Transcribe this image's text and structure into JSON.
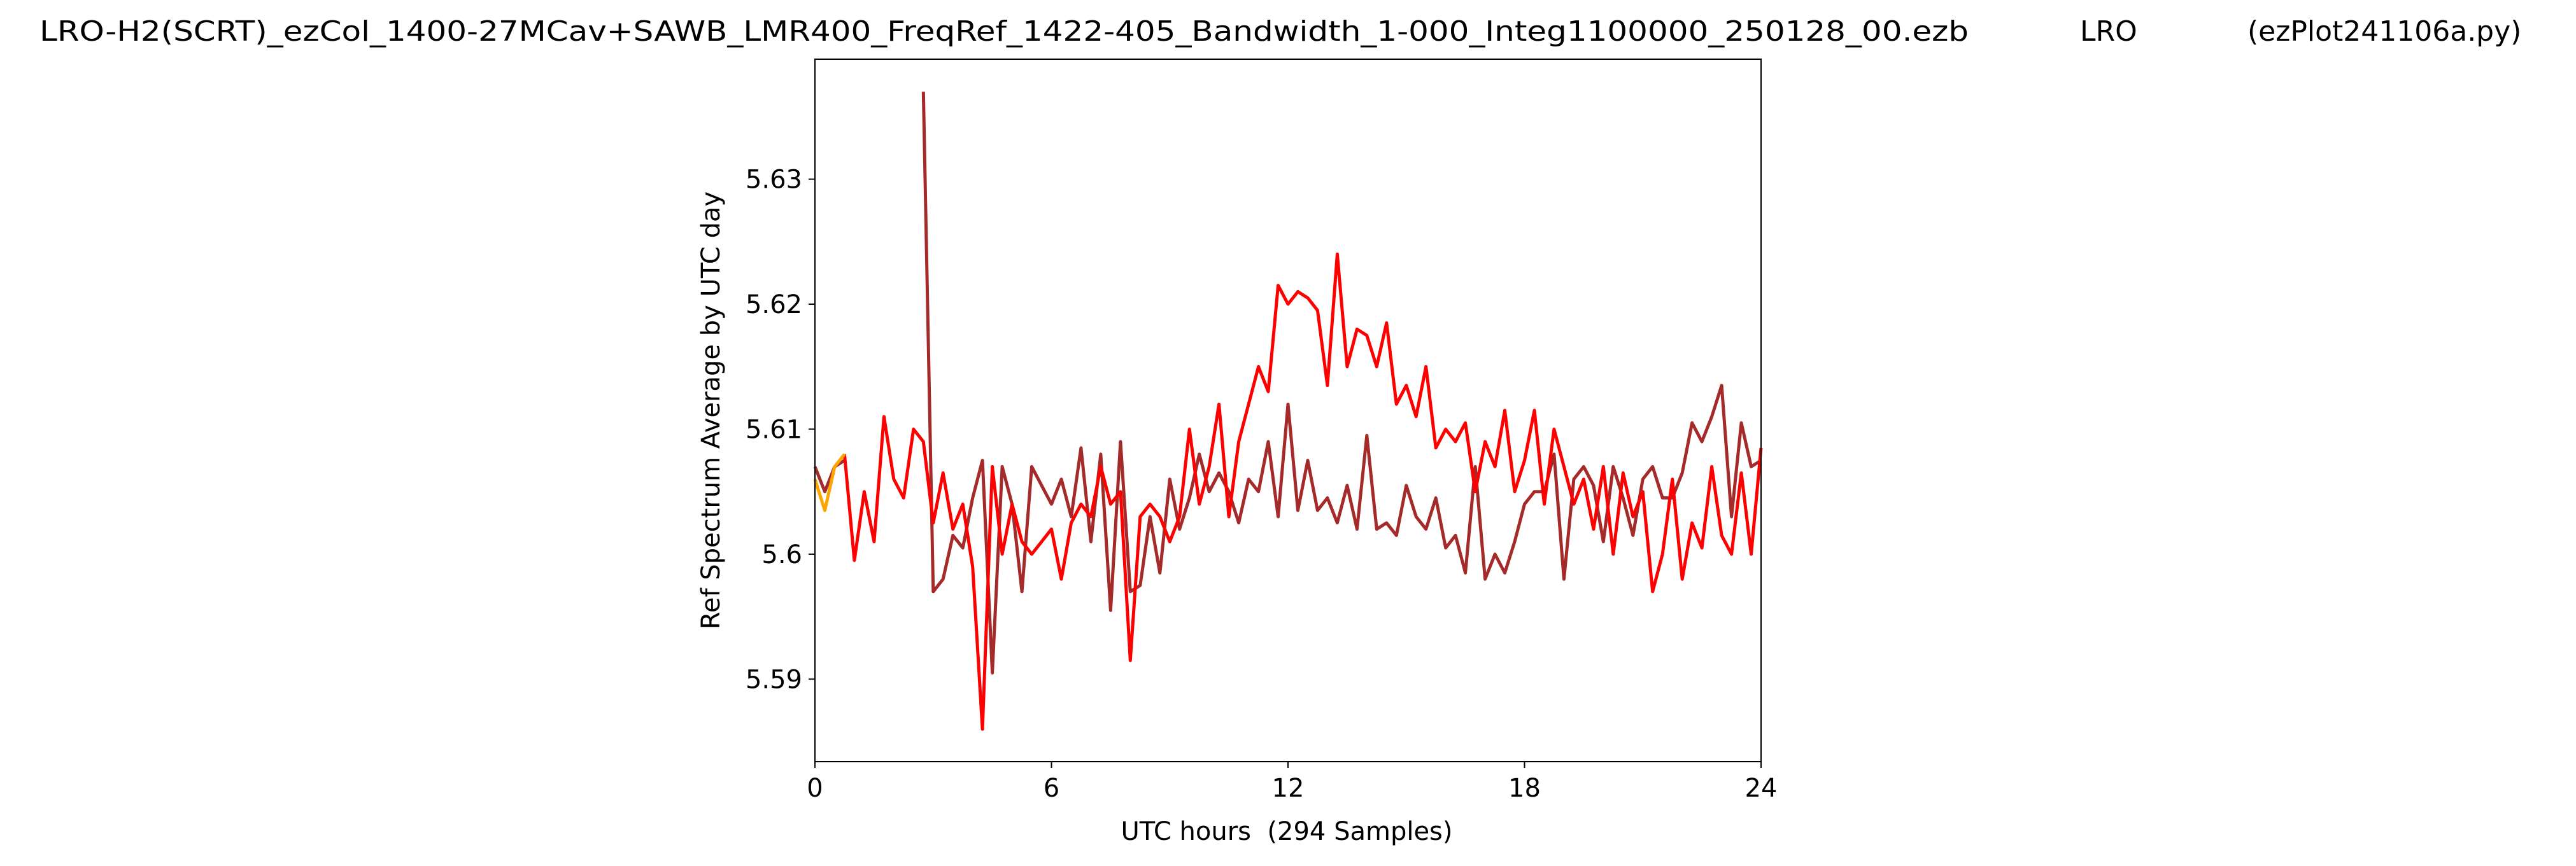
{
  "chart_data": {
    "type": "line",
    "title": "LRO-H2(SCRT)_ezCol_1400-27MCav+SAWB_LMR400_FreqRef_1422-405_Bandwidth_1-000_Integ1100000_250128_00.ezb",
    "annotations": [
      "LRO",
      "(ezPlot241106a.py)"
    ],
    "xlabel": "UTC hours  (294 Samples)",
    "ylabel": "Ref Spectrum Average by UTC day",
    "xlim": [
      0,
      24
    ],
    "xticks": [
      0,
      6,
      12,
      18,
      24
    ],
    "ylim": [
      5.5834,
      5.6396
    ],
    "yticks": [
      5.59,
      5.6,
      5.61,
      5.62,
      5.63
    ],
    "grid": false,
    "x": [
      0,
      0.25,
      0.5,
      0.75,
      1,
      1.25,
      1.5,
      1.75,
      2,
      2.25,
      2.5,
      2.75,
      3,
      3.25,
      3.5,
      3.75,
      4,
      4.25,
      4.5,
      4.75,
      5,
      5.25,
      5.5,
      5.75,
      6,
      6.25,
      6.5,
      6.75,
      7,
      7.25,
      7.5,
      7.75,
      8,
      8.25,
      8.5,
      8.75,
      9,
      9.25,
      9.5,
      9.75,
      10,
      10.25,
      10.5,
      10.75,
      11,
      11.25,
      11.5,
      11.75,
      12,
      12.25,
      12.5,
      12.75,
      13,
      13.25,
      13.5,
      13.75,
      14,
      14.25,
      14.5,
      14.75,
      15,
      15.25,
      15.5,
      15.75,
      16,
      16.25,
      16.5,
      16.75,
      17,
      17.25,
      17.5,
      17.75,
      18,
      18.25,
      18.5,
      18.75,
      19,
      19.25,
      19.5,
      19.75,
      20,
      20.25,
      20.5,
      20.75,
      21,
      21.25,
      21.5,
      21.75,
      22,
      22.25,
      22.5,
      22.75,
      23,
      23.25,
      23.5,
      23.75,
      24
    ],
    "series": [
      {
        "color": "#a52a2a",
        "values": [
          5.607,
          5.605,
          5.607,
          5.6075,
          null,
          null,
          null,
          null,
          null,
          null,
          null,
          5.637,
          5.597,
          5.598,
          5.6015,
          5.6005,
          5.6045,
          5.6075,
          5.5905,
          5.607,
          5.604,
          5.597,
          5.607,
          5.6055,
          5.604,
          5.606,
          5.603,
          5.6085,
          5.601,
          5.608,
          5.5955,
          5.609,
          5.597,
          5.5975,
          5.603,
          5.5985,
          5.606,
          5.602,
          5.6045,
          5.608,
          5.605,
          5.6065,
          5.605,
          5.6025,
          5.606,
          5.605,
          5.609,
          5.603,
          5.612,
          5.6035,
          5.6075,
          5.6035,
          5.6045,
          5.6025,
          5.6055,
          5.602,
          5.6095,
          5.602,
          5.6025,
          5.6015,
          5.6055,
          5.603,
          5.602,
          5.6045,
          5.6005,
          5.6015,
          5.5985,
          5.607,
          5.598,
          5.6,
          5.5985,
          5.601,
          5.604,
          5.605,
          5.605,
          5.608,
          5.598,
          5.606,
          5.607,
          5.6055,
          5.601,
          5.607,
          5.6045,
          5.6015,
          5.606,
          5.607,
          5.6045,
          5.6045,
          5.6065,
          5.6105,
          5.609,
          5.611,
          5.6135,
          5.603,
          5.6105,
          5.607,
          5.6075
        ]
      },
      {
        "color": "#ff0000",
        "values": [
          null,
          null,
          null,
          5.608,
          5.5995,
          5.605,
          5.601,
          5.611,
          5.606,
          5.6045,
          5.61,
          5.609,
          5.6025,
          5.6065,
          5.602,
          5.604,
          5.599,
          5.586,
          5.607,
          5.6,
          5.604,
          5.601,
          5.6,
          5.601,
          5.602,
          5.598,
          5.6025,
          5.604,
          5.603,
          5.607,
          5.604,
          5.605,
          5.5915,
          5.603,
          5.604,
          5.603,
          5.601,
          5.603,
          5.61,
          5.604,
          5.607,
          5.612,
          5.603,
          5.609,
          5.612,
          5.615,
          5.613,
          5.6215,
          5.62,
          5.621,
          5.6205,
          5.6195,
          5.6135,
          5.624,
          5.615,
          5.618,
          5.6175,
          5.615,
          5.6185,
          5.612,
          5.6135,
          5.611,
          5.615,
          5.6085,
          5.61,
          5.609,
          5.6105,
          5.605,
          5.609,
          5.607,
          5.6115,
          5.605,
          5.6075,
          5.6115,
          5.604,
          5.61,
          5.607,
          5.604,
          5.606,
          5.602,
          5.607,
          5.6,
          5.6065,
          5.603,
          5.605,
          5.597,
          5.6,
          5.606,
          5.598,
          5.6025,
          5.6005,
          5.607,
          5.6015,
          5.6,
          5.6065,
          5.6,
          5.6085
        ]
      },
      {
        "color": "#ffa500",
        "values": [
          5.606,
          5.6035,
          5.607,
          5.608,
          null,
          null,
          null,
          null,
          null,
          null,
          null,
          null,
          null,
          null,
          null,
          null,
          null,
          null,
          null,
          null,
          null,
          null,
          null,
          null,
          null,
          null,
          null,
          null,
          null,
          null,
          null,
          null,
          null,
          null,
          null,
          null,
          null,
          null,
          null,
          null,
          null,
          null,
          null,
          null,
          null,
          null,
          null,
          null,
          null,
          null,
          null,
          null,
          null,
          null,
          null,
          null,
          null,
          null,
          null,
          null,
          null,
          null,
          null,
          null,
          null,
          null,
          null,
          null,
          null,
          null,
          null,
          null,
          null,
          null,
          null,
          null,
          null,
          null,
          null,
          null,
          null,
          null,
          null,
          null,
          null,
          null,
          null,
          null,
          null,
          null,
          null,
          null,
          null,
          null,
          null,
          null,
          null
        ]
      }
    ]
  }
}
